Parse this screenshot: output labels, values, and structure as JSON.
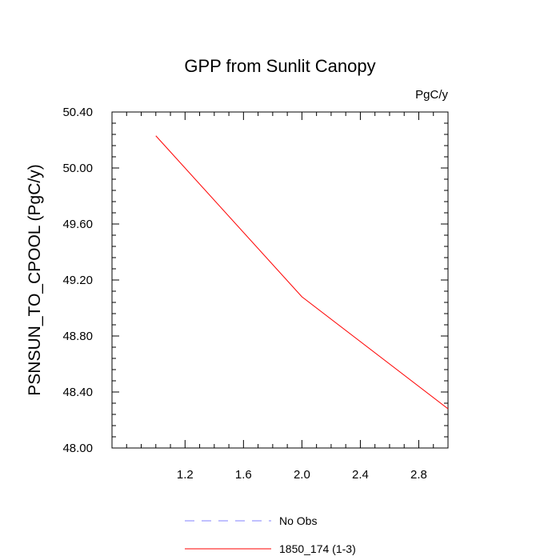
{
  "chart_data": {
    "type": "line",
    "title": "GPP from Sunlit Canopy",
    "units_label": "PgC/y",
    "xlabel": "",
    "ylabel": "PSNSUN_TO_CPOOL  (PgC/y)",
    "xlim": [
      0.7,
      3.0
    ],
    "ylim": [
      48.0,
      50.4
    ],
    "x_ticks": [
      1.2,
      1.6,
      2.0,
      2.4,
      2.8
    ],
    "x_tick_labels": [
      "1.2",
      "1.6",
      "2.0",
      "2.4",
      "2.8"
    ],
    "y_ticks": [
      48.0,
      48.4,
      48.8,
      49.2,
      49.6,
      50.0,
      50.4
    ],
    "y_tick_labels": [
      "48.00",
      "48.40",
      "48.80",
      "49.20",
      "49.60",
      "50.00",
      "50.40"
    ],
    "grid": false,
    "legend_position": "bottom",
    "series": [
      {
        "name": "No Obs",
        "color": "#8080ff",
        "dash": "dashed",
        "x": [],
        "y": []
      },
      {
        "name": "1850_174 (1-3)",
        "color": "#ff0000",
        "dash": "solid",
        "x": [
          1.0,
          2.0,
          3.0
        ],
        "y": [
          50.23,
          49.08,
          48.28
        ]
      }
    ]
  }
}
